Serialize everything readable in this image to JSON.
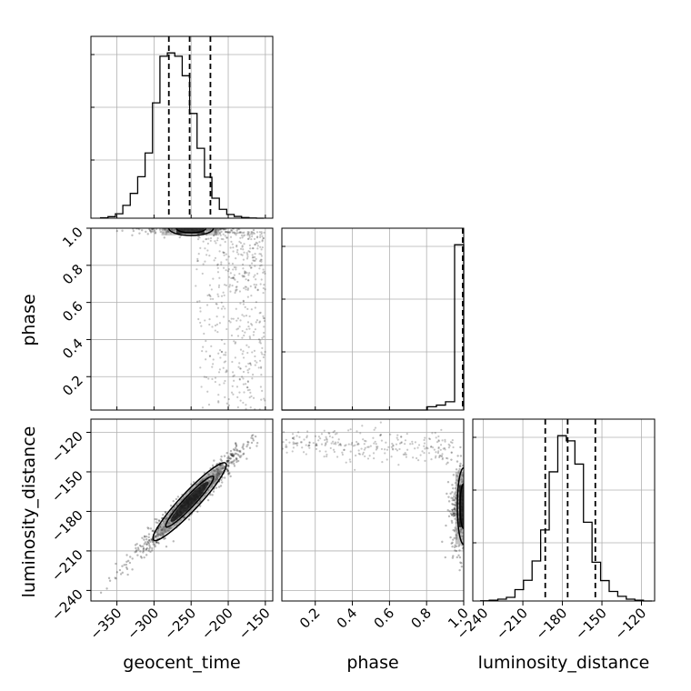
{
  "chart_data": {
    "type": "corner",
    "parameters": [
      "geocent_time",
      "phase",
      "luminosity_distance"
    ],
    "axes": {
      "geocent_time": {
        "label": "geocent_time",
        "range": [
          -385,
          -140
        ],
        "ticks": [
          -350,
          -300,
          -250,
          -200,
          -150
        ],
        "tick_labels": [
          "−350",
          "−300",
          "−250",
          "−200",
          "−150"
        ]
      },
      "phase": {
        "label": "phase",
        "range": [
          0.02,
          1.0
        ],
        "ticks": [
          0.2,
          0.4,
          0.6,
          0.8,
          1.0
        ],
        "tick_labels": [
          "0.2",
          "0.4",
          "0.6",
          "0.8",
          "1.0"
        ]
      },
      "luminosity_distance": {
        "label": "luminosity_distance",
        "range": [
          -248,
          -110
        ],
        "ticks": [
          -240,
          -210,
          -180,
          -150,
          -120
        ],
        "tick_labels": [
          "−240",
          "−210",
          "−180",
          "−150",
          "−120"
        ]
      }
    },
    "histograms": {
      "geocent_time": {
        "bin_edges": [
          -372,
          -362,
          -352,
          -342,
          -332,
          -322,
          -312,
          -302,
          -292,
          -282,
          -272,
          -262,
          -252,
          -242,
          -232,
          -222,
          -212,
          -202,
          -192,
          -182,
          -172,
          -162,
          -152
        ],
        "counts": [
          2,
          7,
          20,
          58,
          112,
          187,
          294,
          520,
          730,
          745,
          730,
          642,
          472,
          315,
          185,
          90,
          40,
          17,
          8,
          3,
          1,
          0
        ],
        "quantiles": [
          -280,
          -252,
          -224
        ]
      },
      "phase": {
        "bin_edges": [
          0.02,
          0.069,
          0.118,
          0.167,
          0.216,
          0.265,
          0.314,
          0.363,
          0.412,
          0.461,
          0.51,
          0.559,
          0.608,
          0.657,
          0.706,
          0.755,
          0.804,
          0.853,
          0.902,
          0.951,
          1.0
        ],
        "counts": [
          0,
          0,
          0,
          0,
          0,
          0,
          0,
          0,
          0,
          0,
          0,
          0,
          0,
          0,
          0,
          0,
          2,
          3,
          5,
          100
        ],
        "quantiles": [
          0.999,
          1.0,
          1.0
        ]
      },
      "luminosity_distance": {
        "bin_edges": [
          -242,
          -235.5,
          -229,
          -222.5,
          -216,
          -209.5,
          -203,
          -196.5,
          -190,
          -183.5,
          -177,
          -170.5,
          -164,
          -157.5,
          -151,
          -144.5,
          -138,
          -131.5,
          -125,
          -118.5,
          -112
        ],
        "counts": [
          1,
          3,
          7,
          14,
          44,
          80,
          155,
          275,
          500,
          640,
          620,
          530,
          305,
          150,
          79,
          37,
          18,
          7,
          3,
          0
        ],
        "quantiles": [
          -193,
          -176,
          -155
        ]
      }
    },
    "scatter": {
      "geocent_time_vs_phase": {
        "core": {
          "x": [
            -275,
            -225
          ],
          "y": [
            0.975,
            1.0
          ]
        },
        "tail": {
          "x": [
            -245,
            -150
          ],
          "y": [
            0.02,
            0.98
          ]
        }
      },
      "geocent_time_vs_luminosity_distance": {
        "slope": 0.55,
        "intercept": -34.0,
        "x_spread": [
          -378,
          -155
        ]
      },
      "phase_vs_luminosity_distance": {
        "core": {
          "x": [
            0.9,
            1.0
          ],
          "y": [
            -210,
            -140
          ]
        },
        "tail": {
          "x": [
            0.02,
            0.95
          ],
          "y": [
            -140,
            -112
          ]
        }
      }
    }
  }
}
